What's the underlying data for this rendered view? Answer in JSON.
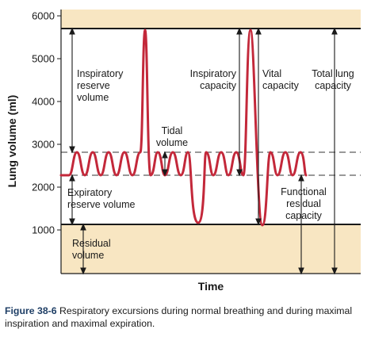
{
  "axes": {
    "ylabel": "Lung volume (ml)",
    "xlabel": "Time",
    "yticks": [
      "6000",
      "5000",
      "4000",
      "3000",
      "2000",
      "1000"
    ]
  },
  "labels": {
    "inspiratory_reserve": [
      "Inspiratory",
      "reserve",
      "volume"
    ],
    "tidal": [
      "Tidal",
      "volume"
    ],
    "inspiratory_capacity": [
      "Inspiratory",
      "capacity"
    ],
    "vital_capacity": [
      "Vital",
      "capacity"
    ],
    "total_lung_capacity": [
      "Total lung",
      "capacity"
    ],
    "expiratory_reserve": [
      "Expiratory",
      "reserve volume"
    ],
    "functional_residual": [
      "Functional",
      "residual",
      "capacity"
    ],
    "residual": [
      "Residual",
      "volume"
    ]
  },
  "caption": {
    "label": "Figure 38-6",
    "text": "Respiratory excursions during normal breathing and during maximal inspiration and maximal expiration."
  },
  "colors": {
    "band": "#f8e6c2",
    "trace": "#c3283a",
    "caption_label": "#1f3f66"
  }
}
